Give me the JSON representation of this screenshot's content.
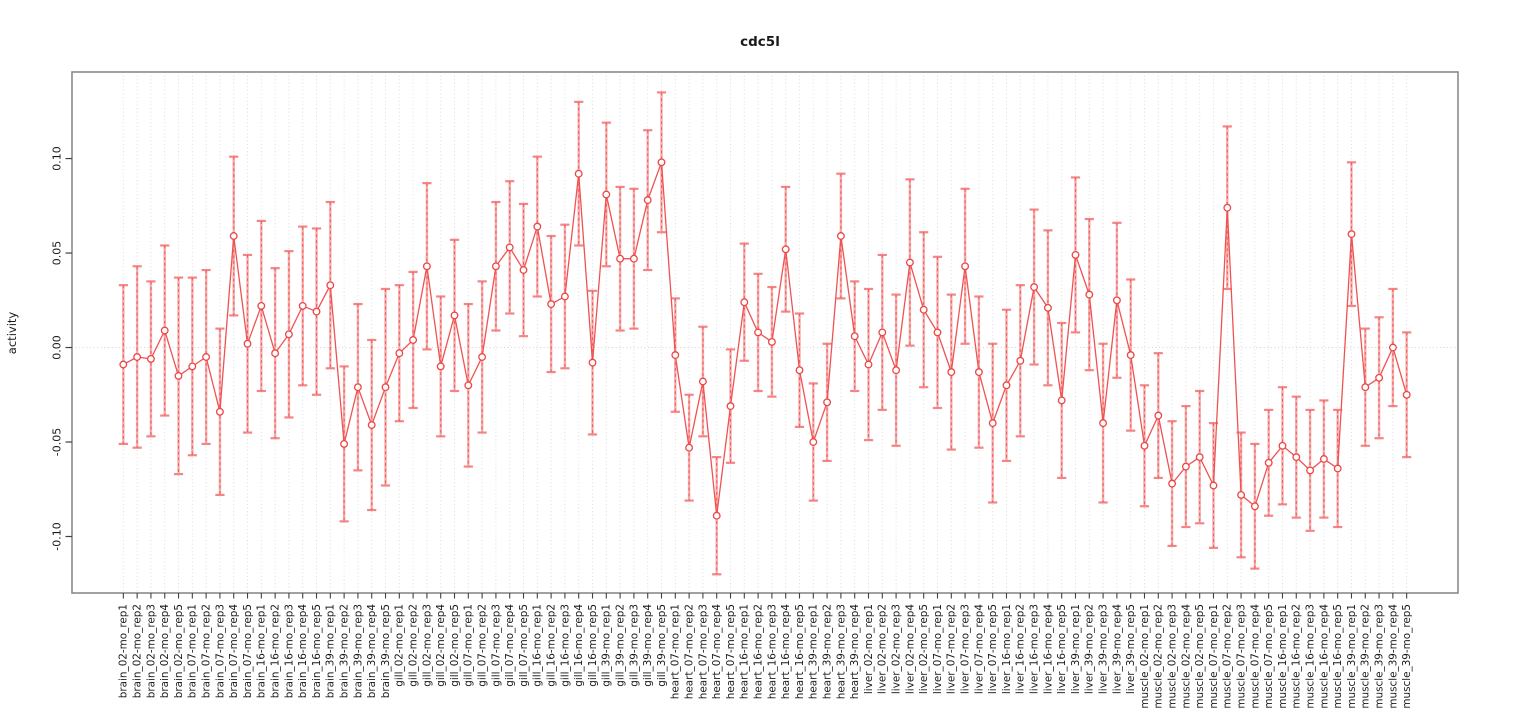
{
  "page": {
    "background": "#ffffff"
  },
  "colors": {
    "point": "#ed4545",
    "series_line": "#f05252",
    "error_bar": "#f7abab",
    "error_bar_cap": "#f58585",
    "error_bar_dash": "#ef6060",
    "gridline": "#dcdcdc",
    "zero_line": "#d2d2d2",
    "plot_border": "#8a8a8a",
    "tick": "#404040",
    "text": "#1a1a1a"
  },
  "chart_data": {
    "type": "line",
    "title": "cdc5l",
    "xlabel": "",
    "ylabel": "activity",
    "legend": "none",
    "grid": {
      "vertical_dotted_per_sample": true,
      "horizontal_dotted_zero_line": true
    },
    "marker": "open-circle",
    "error_bars": "symmetric, ci_half_width column",
    "ylim": [
      -0.1299,
      0.1458
    ],
    "yticks": [
      -0.1,
      -0.05,
      0.0,
      0.05,
      0.1
    ],
    "categories": [
      "brain_02-mo_rep1",
      "brain_02-mo_rep2",
      "brain_02-mo_rep3",
      "brain_02-mo_rep4",
      "brain_02-mo_rep5",
      "brain_07-mo_rep1",
      "brain_07-mo_rep2",
      "brain_07-mo_rep3",
      "brain_07-mo_rep4",
      "brain_07-mo_rep5",
      "brain_16-mo_rep1",
      "brain_16-mo_rep2",
      "brain_16-mo_rep3",
      "brain_16-mo_rep4",
      "brain_16-mo_rep5",
      "brain_39-mo_rep1",
      "brain_39-mo_rep2",
      "brain_39-mo_rep3",
      "brain_39-mo_rep4",
      "brain_39-mo_rep5",
      "gill_02-mo_rep1",
      "gill_02-mo_rep2",
      "gill_02-mo_rep3",
      "gill_02-mo_rep4",
      "gill_02-mo_rep5",
      "gill_07-mo_rep1",
      "gill_07-mo_rep2",
      "gill_07-mo_rep3",
      "gill_07-mo_rep4",
      "gill_07-mo_rep5",
      "gill_16-mo_rep1",
      "gill_16-mo_rep2",
      "gill_16-mo_rep3",
      "gill_16-mo_rep4",
      "gill_16-mo_rep5",
      "gill_39-mo_rep1",
      "gill_39-mo_rep2",
      "gill_39-mo_rep3",
      "gill_39-mo_rep4",
      "gill_39-mo_rep5",
      "heart_07-mo_rep1",
      "heart_07-mo_rep2",
      "heart_07-mo_rep3",
      "heart_07-mo_rep4",
      "heart_07-mo_rep5",
      "heart_16-mo_rep1",
      "heart_16-mo_rep2",
      "heart_16-mo_rep3",
      "heart_16-mo_rep4",
      "heart_16-mo_rep5",
      "heart_39-mo_rep1",
      "heart_39-mo_rep2",
      "heart_39-mo_rep3",
      "heart_39-mo_rep4",
      "liver_02-mo_rep1",
      "liver_02-mo_rep2",
      "liver_02-mo_rep3",
      "liver_02-mo_rep4",
      "liver_02-mo_rep5",
      "liver_07-mo_rep1",
      "liver_07-mo_rep2",
      "liver_07-mo_rep3",
      "liver_07-mo_rep4",
      "liver_07-mo_rep5",
      "liver_16-mo_rep1",
      "liver_16-mo_rep2",
      "liver_16-mo_rep3",
      "liver_16-mo_rep4",
      "liver_16-mo_rep5",
      "liver_39-mo_rep1",
      "liver_39-mo_rep2",
      "liver_39-mo_rep3",
      "liver_39-mo_rep4",
      "liver_39-mo_rep5",
      "muscle_02-mo_rep1",
      "muscle_02-mo_rep2",
      "muscle_02-mo_rep3",
      "muscle_02-mo_rep4",
      "muscle_02-mo_rep5",
      "muscle_07-mo_rep1",
      "muscle_07-mo_rep2",
      "muscle_07-mo_rep3",
      "muscle_07-mo_rep4",
      "muscle_07-mo_rep5",
      "muscle_16-mo_rep1",
      "muscle_16-mo_rep2",
      "muscle_16-mo_rep3",
      "muscle_16-mo_rep4",
      "muscle_16-mo_rep5",
      "muscle_39-mo_rep1",
      "muscle_39-mo_rep2",
      "muscle_39-mo_rep3",
      "muscle_39-mo_rep4",
      "muscle_39-mo_rep5"
    ],
    "values": [
      -0.009,
      -0.005,
      -0.006,
      0.009,
      -0.015,
      -0.01,
      -0.005,
      -0.034,
      0.059,
      0.002,
      0.022,
      -0.003,
      0.007,
      0.022,
      0.019,
      0.033,
      -0.051,
      -0.021,
      -0.041,
      -0.021,
      -0.003,
      0.004,
      0.043,
      -0.01,
      0.017,
      -0.02,
      -0.005,
      0.043,
      0.053,
      0.041,
      0.064,
      0.023,
      0.027,
      0.092,
      -0.008,
      0.081,
      0.047,
      0.047,
      0.078,
      0.098,
      -0.004,
      -0.053,
      -0.018,
      -0.089,
      -0.031,
      0.024,
      0.008,
      0.003,
      0.052,
      -0.012,
      -0.05,
      -0.029,
      0.059,
      0.006,
      -0.009,
      0.008,
      -0.012,
      0.045,
      0.02,
      0.008,
      -0.013,
      0.043,
      -0.013,
      -0.04,
      -0.02,
      -0.007,
      0.032,
      0.021,
      -0.028,
      0.049,
      0.028,
      -0.04,
      0.025,
      -0.004,
      -0.052,
      -0.036,
      -0.072,
      -0.063,
      -0.058,
      -0.073,
      0.074,
      -0.078,
      -0.084,
      -0.061,
      -0.052,
      -0.058,
      -0.065,
      -0.059,
      -0.064,
      0.06,
      -0.021,
      -0.016,
      0.0,
      -0.025
    ],
    "ci_half_width": [
      0.042,
      0.048,
      0.041,
      0.045,
      0.052,
      0.047,
      0.046,
      0.044,
      0.042,
      0.047,
      0.045,
      0.045,
      0.044,
      0.042,
      0.044,
      0.044,
      0.041,
      0.044,
      0.045,
      0.052,
      0.036,
      0.036,
      0.044,
      0.037,
      0.04,
      0.043,
      0.04,
      0.034,
      0.035,
      0.035,
      0.037,
      0.036,
      0.038,
      0.038,
      0.038,
      0.038,
      0.038,
      0.037,
      0.037,
      0.037,
      0.03,
      0.028,
      0.029,
      0.031,
      0.03,
      0.031,
      0.031,
      0.029,
      0.033,
      0.03,
      0.031,
      0.031,
      0.033,
      0.029,
      0.04,
      0.041,
      0.04,
      0.044,
      0.041,
      0.04,
      0.041,
      0.041,
      0.04,
      0.042,
      0.04,
      0.04,
      0.041,
      0.041,
      0.041,
      0.041,
      0.04,
      0.042,
      0.041,
      0.04,
      0.032,
      0.033,
      0.033,
      0.032,
      0.035,
      0.033,
      0.043,
      0.033,
      0.033,
      0.028,
      0.031,
      0.032,
      0.032,
      0.031,
      0.031,
      0.038,
      0.031,
      0.032,
      0.031,
      0.033
    ]
  }
}
